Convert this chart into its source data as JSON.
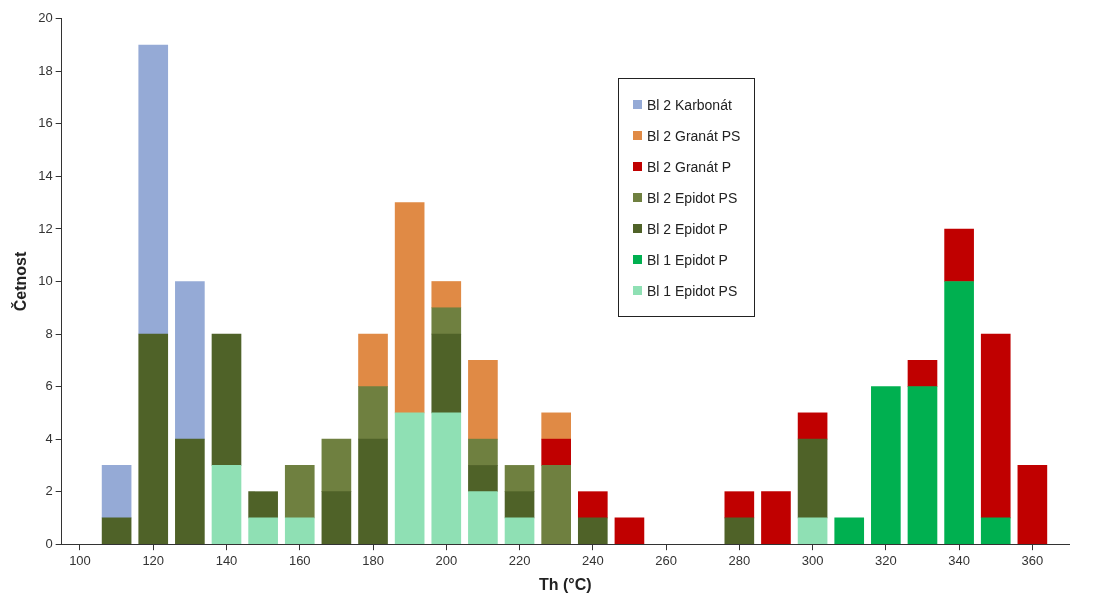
{
  "chart_data": {
    "type": "bar",
    "stacked": true,
    "xlabel": "Th (°C)",
    "ylabel": "Četnost",
    "xlim": [
      95,
      370
    ],
    "xticks": [
      100,
      120,
      140,
      160,
      180,
      200,
      220,
      240,
      260,
      280,
      300,
      320,
      340,
      360
    ],
    "ylim": [
      0,
      20
    ],
    "yticks": [
      0,
      2,
      4,
      6,
      8,
      10,
      12,
      14,
      16,
      18,
      20
    ],
    "grid": false,
    "legend": "top right",
    "x": [
      110,
      120,
      130,
      140,
      150,
      160,
      170,
      180,
      190,
      200,
      210,
      220,
      230,
      240,
      250,
      260,
      270,
      280,
      290,
      300,
      310,
      320,
      330,
      340,
      350,
      360
    ],
    "series": [
      {
        "name": "Bl 1 Epidot PS",
        "color": "#8fe0b4",
        "values": [
          null,
          null,
          null,
          3,
          1,
          1,
          null,
          null,
          5,
          5,
          2,
          1,
          null,
          null,
          null,
          null,
          null,
          null,
          null,
          1,
          null,
          null,
          null,
          null,
          null,
          null
        ]
      },
      {
        "name": "Bl 1 Epidot P",
        "color": "#00b050",
        "values": [
          null,
          null,
          null,
          null,
          null,
          null,
          null,
          null,
          null,
          null,
          null,
          null,
          null,
          null,
          null,
          null,
          null,
          null,
          null,
          null,
          1,
          6,
          6,
          10,
          1,
          null
        ]
      },
      {
        "name": "Bl 2 Epidot P",
        "color": "#4f6228",
        "values": [
          1,
          8,
          4,
          5,
          1,
          null,
          2,
          4,
          null,
          3,
          1,
          1,
          null,
          1,
          null,
          null,
          null,
          1,
          null,
          3,
          null,
          null,
          null,
          null,
          null,
          null
        ]
      },
      {
        "name": "Bl 2 Epidot PS",
        "color": "#6f8040",
        "values": [
          null,
          null,
          null,
          null,
          null,
          2,
          2,
          2,
          null,
          1,
          1,
          1,
          3,
          null,
          null,
          null,
          null,
          null,
          null,
          null,
          null,
          null,
          null,
          null,
          null,
          null
        ]
      },
      {
        "name": "Bl 2 Granát P",
        "color": "#c00000",
        "values": [
          null,
          null,
          null,
          null,
          null,
          null,
          null,
          null,
          null,
          null,
          null,
          null,
          1,
          1,
          1,
          null,
          null,
          1,
          2,
          1,
          null,
          null,
          1,
          2,
          7,
          3
        ]
      },
      {
        "name": "Bl 2 Granát PS",
        "color": "#e08a45",
        "values": [
          null,
          null,
          null,
          null,
          null,
          null,
          null,
          2,
          8,
          1,
          3,
          null,
          1,
          null,
          null,
          null,
          null,
          null,
          null,
          null,
          null,
          null,
          null,
          null,
          null,
          null
        ]
      },
      {
        "name": "Bl 2 Karbonát",
        "color": "#95aad6",
        "values": [
          2,
          11,
          6,
          null,
          null,
          null,
          null,
          null,
          null,
          null,
          null,
          null,
          null,
          null,
          null,
          null,
          null,
          null,
          null,
          null,
          null,
          null,
          null,
          null,
          null,
          null
        ]
      }
    ]
  }
}
